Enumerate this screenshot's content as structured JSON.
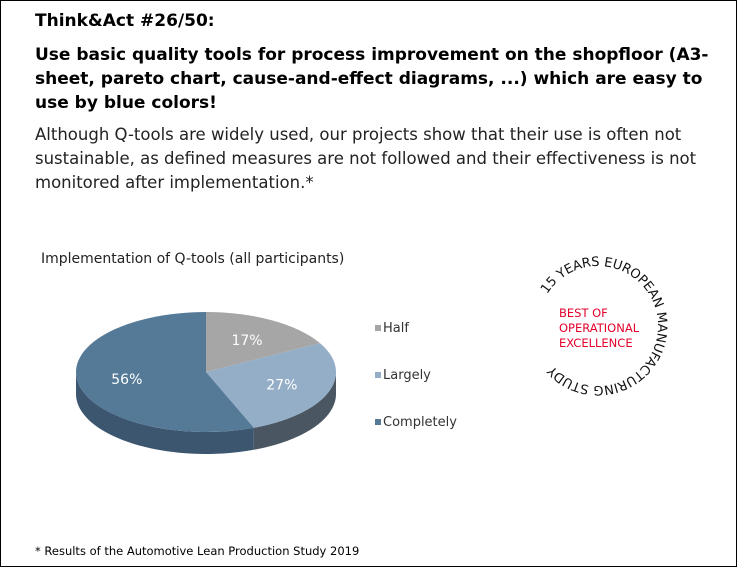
{
  "header": {
    "title": "Think&Act #26/50:",
    "headline": "Use basic quality tools for process improvement on the shopfloor (A3-sheet, pareto chart, cause-and-effect diagrams, ...) which are easy to use by blue colors!",
    "body": "Although Q-tools are widely used, our projects show that their use is often not sustainable, as defined measures are not followed and their effectiveness is not monitored after implementation.*"
  },
  "chart_data": {
    "type": "pie",
    "title": "Implementation of Q-tools (all participants)",
    "categories": [
      "Half",
      "Largely",
      "Completely"
    ],
    "values": [
      17,
      27,
      56
    ],
    "labels": [
      "17%",
      "27%",
      "56%"
    ],
    "colors": [
      "#a6a6a6",
      "#93aec6",
      "#557a98"
    ],
    "side_colors": [
      "#7a7a7a",
      "#4a5661",
      "#3d5670"
    ],
    "legend": "right"
  },
  "badge": {
    "ring_text": "15 YEARS EUROPEAN MANUFACTURING STUDY",
    "lines": [
      "BEST OF",
      "OPERATIONAL",
      "EXCELLENCE"
    ],
    "color": "#e4002b"
  },
  "footnote": "* Results of the Automotive Lean Production Study 2019"
}
